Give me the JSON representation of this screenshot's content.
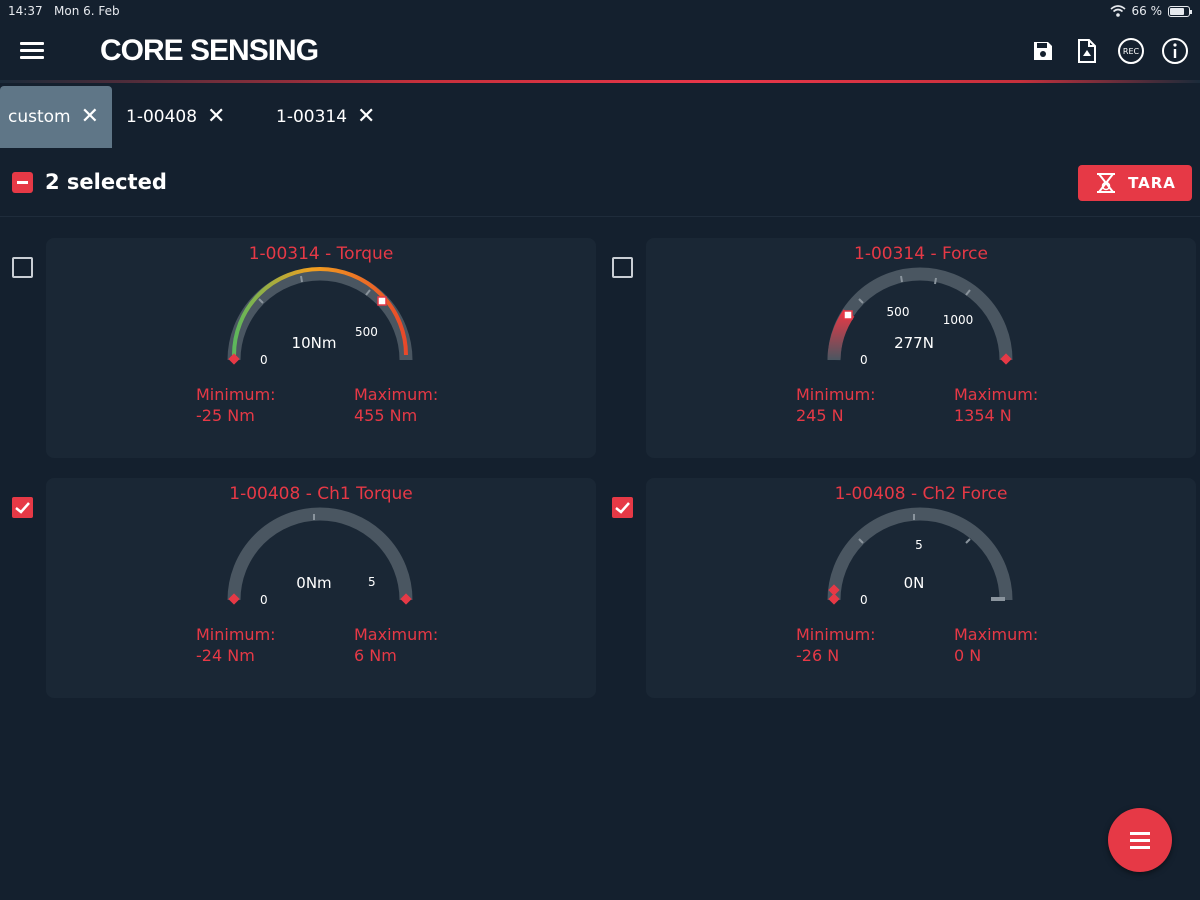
{
  "status_bar": {
    "time": "14:37",
    "date": "Mon 6. Feb",
    "battery": "66 %"
  },
  "app": {
    "logo": "CORE SENSING"
  },
  "toolbar": {
    "icons": [
      "save-icon",
      "export-file-icon",
      "rec-icon",
      "info-icon"
    ],
    "rec_label": "REC"
  },
  "tabs": [
    {
      "label": "custom",
      "active": true
    },
    {
      "label": "1-00408",
      "active": false
    },
    {
      "label": "1-00314",
      "active": false
    }
  ],
  "selection": {
    "text": "2 selected"
  },
  "tara": {
    "label": "TARA"
  },
  "colors": {
    "accent": "#e63946",
    "background": "#14202e",
    "card": "#1a2735",
    "gauge_track": "#4a5661"
  },
  "cards": [
    {
      "title": "1-00314 - Torque",
      "checked": false,
      "reading": "10Nm",
      "scale_min_label": "0",
      "scale_mid_label": "500",
      "min_label": "Minimum:",
      "min_value": "-25 Nm",
      "max_label": "Maximum:",
      "max_value": "455 Nm"
    },
    {
      "title": "1-00314 - Force",
      "checked": false,
      "reading": "277N",
      "scale_min_label": "0",
      "scale_mid_label": "500",
      "scale_high_label": "1000",
      "min_label": "Minimum:",
      "min_value": "245 N",
      "max_label": "Maximum:",
      "max_value": "1354 N"
    },
    {
      "title": "1-00408 - Ch1 Torque",
      "checked": true,
      "reading": "0Nm",
      "scale_min_label": "0",
      "scale_mid_label": "5",
      "min_label": "Minimum:",
      "min_value": "-24 Nm",
      "max_label": "Maximum:",
      "max_value": "6 Nm"
    },
    {
      "title": "1-00408 - Ch2 Force",
      "checked": true,
      "reading": "0N",
      "scale_min_label": "0",
      "scale_mid_label": "5",
      "min_label": "Minimum:",
      "min_value": "-26 N",
      "max_label": "Maximum:",
      "max_value": "0 N"
    }
  ]
}
